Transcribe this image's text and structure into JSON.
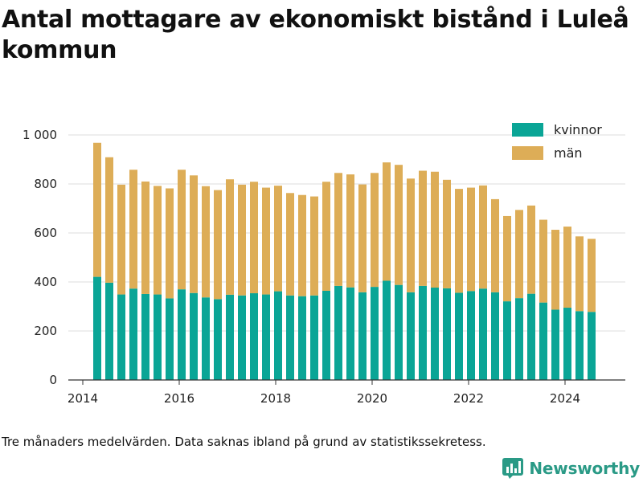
{
  "title": "Antal mottagare av ekonomiskt bistånd i Luleå kommun",
  "footnote": "Tre månaders medelvärden. Data saknas ibland på grund av statistikssekretess.",
  "brand": {
    "name": "Newsworthy",
    "icon": "newsworthy-logo-icon"
  },
  "colors": {
    "kvinnor": "#0aa596",
    "man": "#ddad57",
    "axis": "#333333",
    "grid": "#dddddd"
  },
  "chart_data": {
    "type": "bar",
    "stacked": true,
    "title": "Antal mottagare av ekonomiskt bistånd i Luleå kommun",
    "xlabel": "",
    "ylabel": "",
    "ylim": [
      0,
      1000
    ],
    "yticks": [
      0,
      200,
      400,
      600,
      800,
      1000
    ],
    "ytick_labels": [
      "0",
      "200",
      "400",
      "600",
      "800",
      "1 000"
    ],
    "xlim": [
      2013.7,
      2025.25
    ],
    "xticks": [
      2014,
      2016,
      2018,
      2020,
      2022,
      2024
    ],
    "xtick_labels": [
      "2014",
      "2016",
      "2018",
      "2020",
      "2022",
      "2024"
    ],
    "grid": true,
    "legend_position": "top-right",
    "x": [
      2014.3,
      2014.55,
      2014.8,
      2015.05,
      2015.3,
      2015.55,
      2015.8,
      2016.05,
      2016.3,
      2016.55,
      2016.8,
      2017.05,
      2017.3,
      2017.55,
      2017.8,
      2018.05,
      2018.3,
      2018.55,
      2018.8,
      2019.05,
      2019.3,
      2019.55,
      2019.8,
      2020.05,
      2020.3,
      2020.55,
      2020.8,
      2021.05,
      2021.3,
      2021.55,
      2021.8,
      2022.05,
      2022.3,
      2022.55,
      2022.8,
      2023.05,
      2023.3,
      2023.55,
      2023.8,
      2024.05,
      2024.3,
      2024.55
    ],
    "series": [
      {
        "name": "kvinnor",
        "values": [
          421,
          397,
          349,
          373,
          351,
          349,
          333,
          370,
          355,
          337,
          330,
          348,
          345,
          354,
          349,
          362,
          345,
          342,
          345,
          364,
          384,
          378,
          358,
          380,
          405,
          388,
          358,
          384,
          377,
          374,
          356,
          363,
          373,
          358,
          321,
          334,
          352,
          316,
          287,
          295,
          281,
          278
        ]
      },
      {
        "name": "män",
        "values": [
          547,
          512,
          448,
          485,
          459,
          443,
          449,
          488,
          480,
          454,
          445,
          471,
          452,
          455,
          436,
          431,
          418,
          413,
          404,
          445,
          461,
          461,
          440,
          465,
          483,
          490,
          464,
          470,
          473,
          443,
          424,
          422,
          421,
          380,
          348,
          360,
          360,
          338,
          326,
          331,
          305,
          298
        ]
      }
    ]
  }
}
